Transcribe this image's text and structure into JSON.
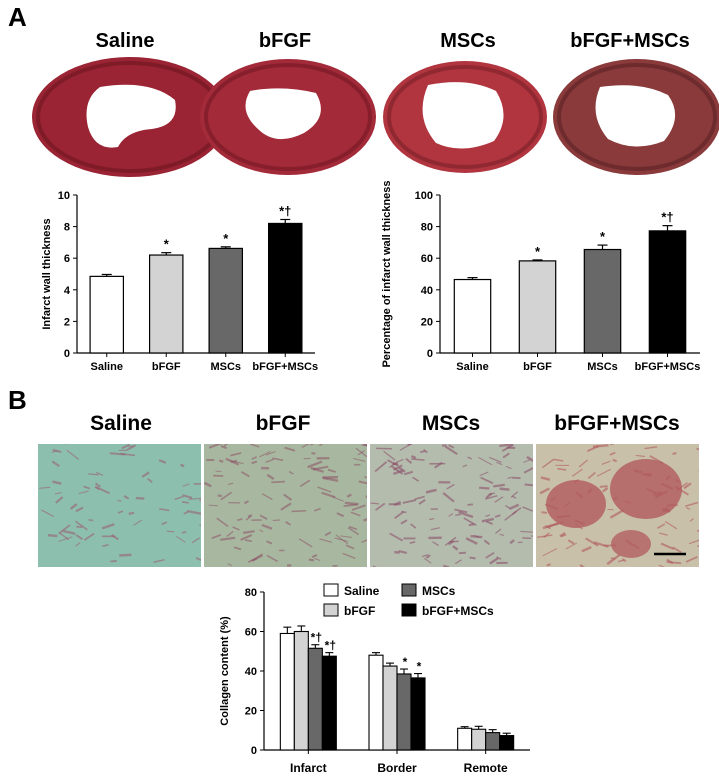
{
  "panel_a": {
    "letter": "A",
    "hearts": [
      {
        "title": "Saline",
        "tissue": "#9a2433",
        "dark": "#6e1520"
      },
      {
        "title": "bFGF",
        "tissue": "#a32a38",
        "dark": "#741824"
      },
      {
        "title": "MSCs",
        "tissue": "#b0353f",
        "dark": "#7c1f2a"
      },
      {
        "title": "bFGF+MSCs",
        "tissue": "#8a3a3a",
        "dark": "#5a2224"
      }
    ]
  },
  "panel_b": {
    "letter": "B",
    "micrographs": [
      {
        "title": "Saline",
        "base": "#8dbfae",
        "accent": "#9a5a6e"
      },
      {
        "title": "bFGF",
        "base": "#a8b8a0",
        "accent": "#8e5468"
      },
      {
        "title": "MSCs",
        "base": "#b4bcae",
        "accent": "#8a4a66"
      },
      {
        "title": "bFGF+MSCs",
        "base": "#c8c0a8",
        "accent": "#b0525a"
      }
    ]
  },
  "chart_data": [
    {
      "type": "bar",
      "ylabel": "Infarct wall thickness",
      "categories": [
        "Saline",
        "bFGF",
        "MSCs",
        "bFGF+MSCs"
      ],
      "values": [
        4.85,
        6.2,
        6.62,
        8.2
      ],
      "errors": [
        0.12,
        0.15,
        0.1,
        0.25
      ],
      "annotations": [
        "",
        "*",
        "*",
        "*†"
      ],
      "colors": [
        "#ffffff",
        "#d3d3d3",
        "#686868",
        "#000000"
      ],
      "ylim": [
        0,
        10
      ],
      "yticks": [
        0,
        2,
        4,
        6,
        8,
        10
      ]
    },
    {
      "type": "bar",
      "ylabel": "Percentage of infarct wall thickness",
      "categories": [
        "Saline",
        "bFGF",
        "MSCs",
        "bFGF+MSCs"
      ],
      "values": [
        46.5,
        58.3,
        65.5,
        77.3
      ],
      "errors": [
        1.2,
        0.6,
        2.8,
        3.3
      ],
      "annotations": [
        "",
        "*",
        "*",
        "*†"
      ],
      "colors": [
        "#ffffff",
        "#d3d3d3",
        "#686868",
        "#000000"
      ],
      "ylim": [
        0,
        100
      ],
      "yticks": [
        0,
        20,
        40,
        60,
        80,
        100
      ]
    },
    {
      "type": "bar",
      "ylabel": "Collagen content (%)",
      "categories": [
        "Infarct",
        "Border",
        "Remote"
      ],
      "series": [
        {
          "name": "Saline",
          "color": "#ffffff",
          "values": [
            59,
            48,
            11
          ],
          "errors": [
            3.2,
            1.3,
            0.8
          ],
          "annotations": [
            "",
            "",
            ""
          ]
        },
        {
          "name": "bFGF",
          "color": "#d3d3d3",
          "values": [
            60,
            42.5,
            10.5
          ],
          "errors": [
            2.8,
            1.5,
            1.5
          ],
          "annotations": [
            "",
            "",
            ""
          ]
        },
        {
          "name": "MSCs",
          "color": "#686868",
          "values": [
            51.5,
            38.5,
            8.8
          ],
          "errors": [
            1.8,
            2.5,
            1.5
          ],
          "annotations": [
            "*†",
            "*",
            ""
          ]
        },
        {
          "name": "bFGF+MSCs",
          "color": "#000000",
          "values": [
            47.5,
            36.5,
            7.3
          ],
          "errors": [
            1.8,
            2.2,
            1.2
          ],
          "annotations": [
            "*†",
            "*",
            ""
          ]
        }
      ],
      "ylim": [
        0,
        80
      ],
      "yticks": [
        0,
        20,
        40,
        60,
        80
      ],
      "legend": "top"
    }
  ]
}
